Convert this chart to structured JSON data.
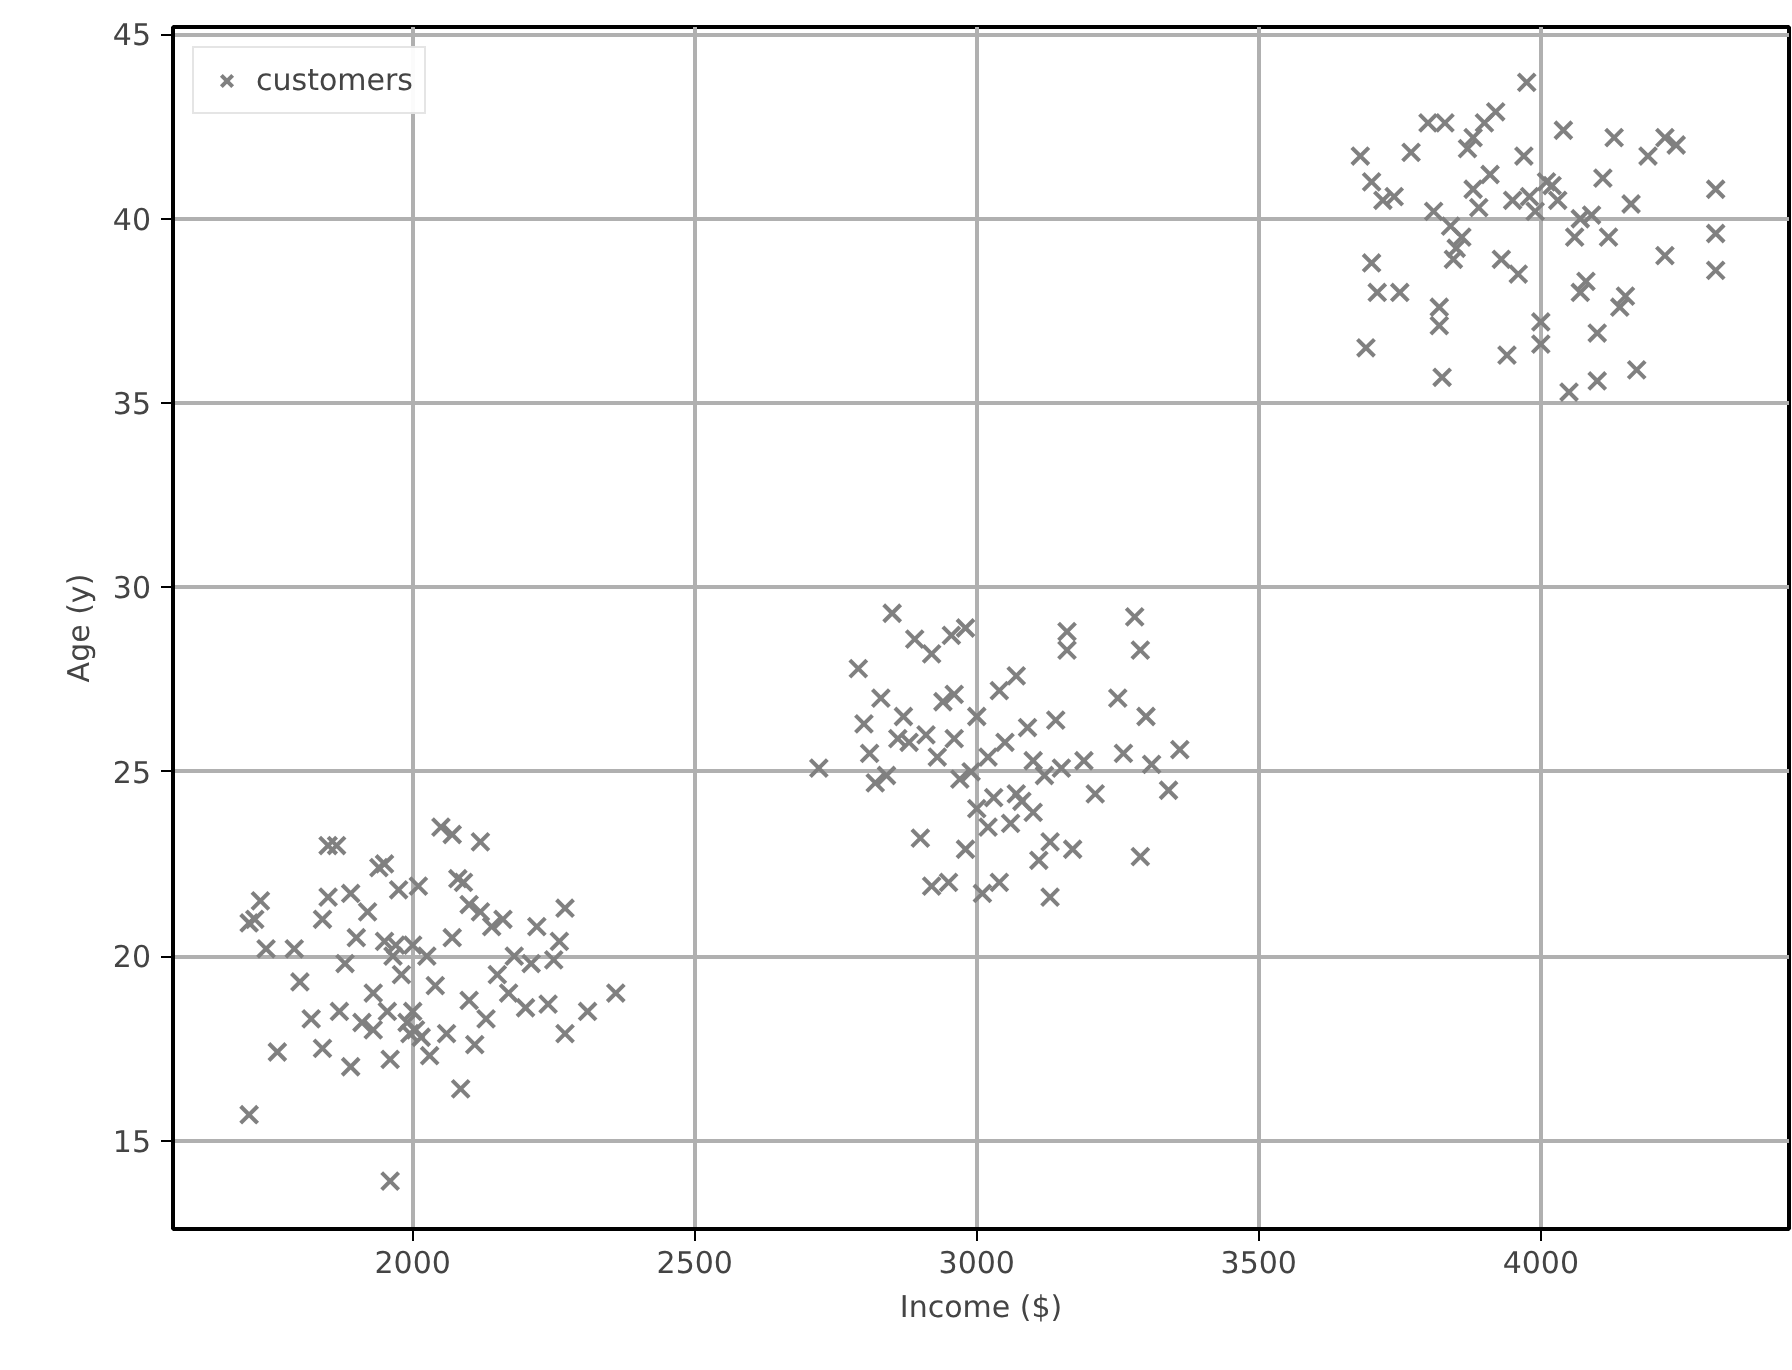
{
  "chart_data": {
    "type": "scatter",
    "xlabel": "Income ($)",
    "ylabel": "Age (y)",
    "xlim": [
      1575,
      4440
    ],
    "ylim": [
      12.6,
      45.2
    ],
    "xticks": [
      2000,
      2500,
      3000,
      3500,
      4000
    ],
    "yticks": [
      15,
      20,
      25,
      30,
      35,
      40,
      45
    ],
    "grid": true,
    "legend": "top left",
    "marker": "cross",
    "series": [
      {
        "name": "customers",
        "color": "#808080",
        "x": [
          1710,
          1960,
          2085,
          1720,
          1730,
          1710,
          1740,
          1760,
          1790,
          1800,
          1820,
          1840,
          1840,
          1850,
          1865,
          1850,
          1870,
          1880,
          1890,
          1890,
          1900,
          1910,
          1920,
          1930,
          1940,
          1950,
          1950,
          1955,
          1960,
          1965,
          1970,
          1975,
          1980,
          1990,
          1995,
          2000,
          2005,
          2010,
          2015,
          2025,
          2040,
          2050,
          2060,
          2070,
          2070,
          2080,
          2090,
          2100,
          2100,
          2110,
          2120,
          2120,
          2130,
          2140,
          2150,
          2160,
          2170,
          2180,
          2200,
          2210,
          2220,
          2240,
          2250,
          2260,
          2270,
          2270,
          2310,
          2360,
          1930,
          2000,
          2030,
          2720,
          2790,
          2800,
          2810,
          2820,
          2830,
          2840,
          2850,
          2860,
          2870,
          2880,
          2890,
          2900,
          2910,
          2920,
          2920,
          2930,
          2940,
          2950,
          2955,
          2960,
          2970,
          2980,
          2980,
          2990,
          3000,
          3000,
          3010,
          3020,
          3030,
          3040,
          3040,
          3050,
          3060,
          3070,
          3070,
          3080,
          3090,
          3100,
          3100,
          3110,
          3120,
          3130,
          3130,
          3140,
          3150,
          3160,
          3160,
          3170,
          3190,
          3210,
          3250,
          3260,
          3280,
          3290,
          3290,
          3300,
          3310,
          3340,
          3360,
          3020,
          2960,
          3680,
          3690,
          3700,
          3700,
          3710,
          3720,
          3740,
          3750,
          3770,
          3800,
          3810,
          3820,
          3820,
          3825,
          3830,
          3840,
          3845,
          3850,
          3860,
          3870,
          3880,
          3890,
          3900,
          3910,
          3920,
          3930,
          3940,
          3950,
          3960,
          3970,
          3975,
          3980,
          3990,
          4000,
          4000,
          4010,
          4020,
          4030,
          4040,
          4050,
          4060,
          4070,
          4080,
          4090,
          4100,
          4100,
          4110,
          4120,
          4130,
          4140,
          4150,
          4160,
          4170,
          4190,
          4220,
          4220,
          4240,
          4310,
          4310,
          4310,
          3880,
          4070
        ],
        "values": [
          15.7,
          13.9,
          16.4,
          21.0,
          21.5,
          20.9,
          20.2,
          17.4,
          20.2,
          19.3,
          18.3,
          17.5,
          21.0,
          23.0,
          23.0,
          21.6,
          18.5,
          19.8,
          17.0,
          21.7,
          20.5,
          18.2,
          21.2,
          19.0,
          22.4,
          22.5,
          20.4,
          18.5,
          17.2,
          20.0,
          20.3,
          21.8,
          19.5,
          18.2,
          17.9,
          20.3,
          18.0,
          21.9,
          17.8,
          20.0,
          19.2,
          23.5,
          17.9,
          23.3,
          20.5,
          22.1,
          22.0,
          18.8,
          21.4,
          17.6,
          23.1,
          21.2,
          18.3,
          20.8,
          19.5,
          21.0,
          19.0,
          20.0,
          18.6,
          19.8,
          20.8,
          18.7,
          19.9,
          20.4,
          21.3,
          17.9,
          18.5,
          19.0,
          18.0,
          18.5,
          17.3,
          25.1,
          27.8,
          26.3,
          25.5,
          24.7,
          27.0,
          24.9,
          29.3,
          25.9,
          26.5,
          25.8,
          28.6,
          23.2,
          26.0,
          21.9,
          28.2,
          25.4,
          26.9,
          22.0,
          28.7,
          25.9,
          24.8,
          28.9,
          22.9,
          25.0,
          24.0,
          26.5,
          21.7,
          23.5,
          24.3,
          27.2,
          22.0,
          25.8,
          23.6,
          24.4,
          27.6,
          24.2,
          26.2,
          23.9,
          25.3,
          22.6,
          24.9,
          21.6,
          23.1,
          26.4,
          25.1,
          28.8,
          28.3,
          22.9,
          25.3,
          24.4,
          27.0,
          25.5,
          29.2,
          28.3,
          22.7,
          26.5,
          25.2,
          24.5,
          25.6,
          25.4,
          27.1,
          41.7,
          36.5,
          41.0,
          38.8,
          38.0,
          40.5,
          40.6,
          38.0,
          41.8,
          42.6,
          40.2,
          37.6,
          37.1,
          35.7,
          42.6,
          39.8,
          38.9,
          39.2,
          39.5,
          41.9,
          42.2,
          40.3,
          42.6,
          41.2,
          42.9,
          38.9,
          36.3,
          40.5,
          38.5,
          41.7,
          43.7,
          40.6,
          40.2,
          37.2,
          36.6,
          41.0,
          40.9,
          40.5,
          42.4,
          35.3,
          39.5,
          38.0,
          38.3,
          40.1,
          35.6,
          36.9,
          41.1,
          39.5,
          42.2,
          37.6,
          37.9,
          40.4,
          35.9,
          41.7,
          42.2,
          39.0,
          42.0,
          40.8,
          39.6,
          38.6,
          40.8,
          40.0
        ]
      }
    ]
  }
}
